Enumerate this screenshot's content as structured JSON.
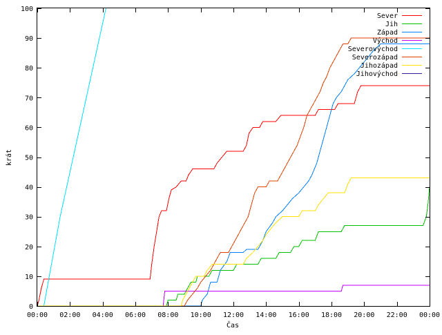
{
  "chart_data": {
    "type": "line",
    "xlabel": "Čas",
    "ylabel": "krát",
    "xlim": [
      0,
      24
    ],
    "ylim": [
      0,
      100
    ],
    "x_tick_labels": [
      "00:00",
      "02:00",
      "04:00",
      "06:00",
      "08:00",
      "10:00",
      "12:00",
      "14:00",
      "16:00",
      "18:00",
      "20:00",
      "22:00",
      "00:00"
    ],
    "x_tick_values": [
      0,
      2,
      4,
      6,
      8,
      10,
      12,
      14,
      16,
      18,
      20,
      22,
      24
    ],
    "y_tick_values": [
      0,
      10,
      20,
      30,
      40,
      50,
      60,
      70,
      80,
      90,
      100
    ],
    "legend_position": "top-right",
    "grid": false,
    "series": [
      {
        "name": "Sever",
        "color": "#ff0000",
        "points": [
          [
            0,
            0
          ],
          [
            0.1,
            2
          ],
          [
            0.25,
            6
          ],
          [
            0.4,
            9
          ],
          [
            6.9,
            9
          ],
          [
            7.0,
            14
          ],
          [
            7.15,
            20
          ],
          [
            7.3,
            25
          ],
          [
            7.45,
            30
          ],
          [
            7.6,
            32
          ],
          [
            7.9,
            32
          ],
          [
            8.05,
            36
          ],
          [
            8.2,
            39
          ],
          [
            8.5,
            40
          ],
          [
            8.8,
            42
          ],
          [
            9.1,
            42
          ],
          [
            9.25,
            44
          ],
          [
            9.5,
            46
          ],
          [
            10.8,
            46
          ],
          [
            11.0,
            48
          ],
          [
            11.3,
            50
          ],
          [
            11.6,
            52
          ],
          [
            12.6,
            52
          ],
          [
            12.8,
            54
          ],
          [
            12.95,
            58
          ],
          [
            13.2,
            60
          ],
          [
            13.6,
            60
          ],
          [
            13.8,
            62
          ],
          [
            14.6,
            62
          ],
          [
            14.9,
            64
          ],
          [
            17.0,
            64
          ],
          [
            17.2,
            66
          ],
          [
            18.2,
            66
          ],
          [
            18.4,
            68
          ],
          [
            19.4,
            68
          ],
          [
            19.6,
            72
          ],
          [
            19.8,
            74
          ],
          [
            24,
            74
          ]
        ]
      },
      {
        "name": "Jih",
        "color": "#00c000",
        "points": [
          [
            0,
            0
          ],
          [
            7.9,
            0
          ],
          [
            8.0,
            2
          ],
          [
            8.5,
            2
          ],
          [
            8.6,
            4
          ],
          [
            9.0,
            4
          ],
          [
            9.2,
            6
          ],
          [
            9.4,
            8
          ],
          [
            9.7,
            8
          ],
          [
            9.8,
            10
          ],
          [
            10.5,
            10
          ],
          [
            10.7,
            12
          ],
          [
            12.0,
            12
          ],
          [
            12.2,
            14
          ],
          [
            13.5,
            14
          ],
          [
            13.7,
            16
          ],
          [
            14.6,
            16
          ],
          [
            14.8,
            18
          ],
          [
            15.5,
            18
          ],
          [
            15.7,
            20
          ],
          [
            16.0,
            20
          ],
          [
            16.2,
            22
          ],
          [
            17.0,
            22
          ],
          [
            17.2,
            25
          ],
          [
            18.6,
            25
          ],
          [
            18.8,
            27
          ],
          [
            23.6,
            27
          ],
          [
            23.8,
            30
          ],
          [
            23.9,
            34
          ],
          [
            24,
            40
          ]
        ]
      },
      {
        "name": "Západ",
        "color": "#0080ff",
        "points": [
          [
            0,
            0
          ],
          [
            10.0,
            0
          ],
          [
            10.1,
            2
          ],
          [
            10.4,
            4
          ],
          [
            10.6,
            8
          ],
          [
            11.0,
            8
          ],
          [
            11.2,
            12
          ],
          [
            11.6,
            15
          ],
          [
            11.8,
            18
          ],
          [
            12.6,
            18
          ],
          [
            12.8,
            19
          ],
          [
            13.5,
            19
          ],
          [
            13.8,
            22
          ],
          [
            14.0,
            25
          ],
          [
            14.4,
            28
          ],
          [
            14.6,
            30
          ],
          [
            15.0,
            32
          ],
          [
            15.3,
            34
          ],
          [
            15.6,
            36
          ],
          [
            16.0,
            38
          ],
          [
            16.3,
            40
          ],
          [
            16.6,
            42
          ],
          [
            16.8,
            44
          ],
          [
            17.1,
            48
          ],
          [
            17.3,
            52
          ],
          [
            17.5,
            56
          ],
          [
            17.7,
            60
          ],
          [
            17.9,
            64
          ],
          [
            18.1,
            68
          ],
          [
            18.3,
            70
          ],
          [
            18.6,
            72
          ],
          [
            18.8,
            74
          ],
          [
            19.0,
            76
          ],
          [
            19.4,
            78
          ],
          [
            19.7,
            80
          ],
          [
            20.0,
            82
          ],
          [
            20.3,
            84
          ],
          [
            20.6,
            86
          ],
          [
            21.0,
            88
          ],
          [
            24,
            88
          ]
        ]
      },
      {
        "name": "Východ",
        "color": "#c000ff",
        "points": [
          [
            0,
            0
          ],
          [
            7.7,
            0
          ],
          [
            7.8,
            5
          ],
          [
            18.6,
            5
          ],
          [
            18.7,
            7
          ],
          [
            24,
            7
          ]
        ]
      },
      {
        "name": "Severovýchod",
        "color": "#00e0ff",
        "points": [
          [
            0.4,
            0
          ],
          [
            1.4,
            30
          ],
          [
            2.4,
            55
          ],
          [
            3.4,
            80
          ],
          [
            4.2,
            100
          ]
        ]
      },
      {
        "name": "Severozápad",
        "color": "#e04000",
        "points": [
          [
            0,
            0
          ],
          [
            9.0,
            0
          ],
          [
            9.2,
            2
          ],
          [
            9.5,
            4
          ],
          [
            9.8,
            6
          ],
          [
            10.0,
            8
          ],
          [
            10.3,
            10
          ],
          [
            10.6,
            12
          ],
          [
            10.8,
            14
          ],
          [
            11.0,
            16
          ],
          [
            11.2,
            18
          ],
          [
            11.7,
            18
          ],
          [
            11.9,
            20
          ],
          [
            12.1,
            22
          ],
          [
            12.3,
            24
          ],
          [
            12.5,
            26
          ],
          [
            12.7,
            28
          ],
          [
            12.9,
            30
          ],
          [
            13.1,
            34
          ],
          [
            13.3,
            38
          ],
          [
            13.5,
            40
          ],
          [
            14.0,
            40
          ],
          [
            14.2,
            42
          ],
          [
            14.7,
            42
          ],
          [
            14.9,
            44
          ],
          [
            15.1,
            46
          ],
          [
            15.3,
            48
          ],
          [
            15.5,
            50
          ],
          [
            15.7,
            52
          ],
          [
            15.9,
            54
          ],
          [
            16.1,
            57
          ],
          [
            16.3,
            60
          ],
          [
            16.5,
            64
          ],
          [
            16.7,
            66
          ],
          [
            16.9,
            68
          ],
          [
            17.1,
            70
          ],
          [
            17.3,
            72
          ],
          [
            17.5,
            75
          ],
          [
            17.7,
            77
          ],
          [
            17.9,
            80
          ],
          [
            18.1,
            82
          ],
          [
            18.3,
            84
          ],
          [
            18.5,
            86
          ],
          [
            18.7,
            88
          ],
          [
            19.0,
            88
          ],
          [
            19.2,
            90
          ],
          [
            24,
            90
          ]
        ]
      },
      {
        "name": "Jihozápad",
        "color": "#ffe000",
        "points": [
          [
            0,
            0
          ],
          [
            8.8,
            0
          ],
          [
            8.9,
            2
          ],
          [
            9.1,
            4
          ],
          [
            9.3,
            6
          ],
          [
            9.5,
            8
          ],
          [
            9.7,
            10
          ],
          [
            10.2,
            10
          ],
          [
            10.4,
            12
          ],
          [
            10.7,
            14
          ],
          [
            12.6,
            14
          ],
          [
            12.8,
            16
          ],
          [
            13.2,
            18
          ],
          [
            13.5,
            20
          ],
          [
            13.8,
            22
          ],
          [
            14.0,
            24
          ],
          [
            14.3,
            26
          ],
          [
            14.6,
            28
          ],
          [
            15.0,
            30
          ],
          [
            16.0,
            30
          ],
          [
            16.2,
            32
          ],
          [
            17.0,
            32
          ],
          [
            17.2,
            34
          ],
          [
            17.5,
            36
          ],
          [
            17.8,
            38
          ],
          [
            18.8,
            38
          ],
          [
            19.0,
            41
          ],
          [
            19.2,
            43
          ],
          [
            24,
            43
          ]
        ]
      },
      {
        "name": "Jihovýchod",
        "color": "#3020a0",
        "points": []
      }
    ]
  }
}
